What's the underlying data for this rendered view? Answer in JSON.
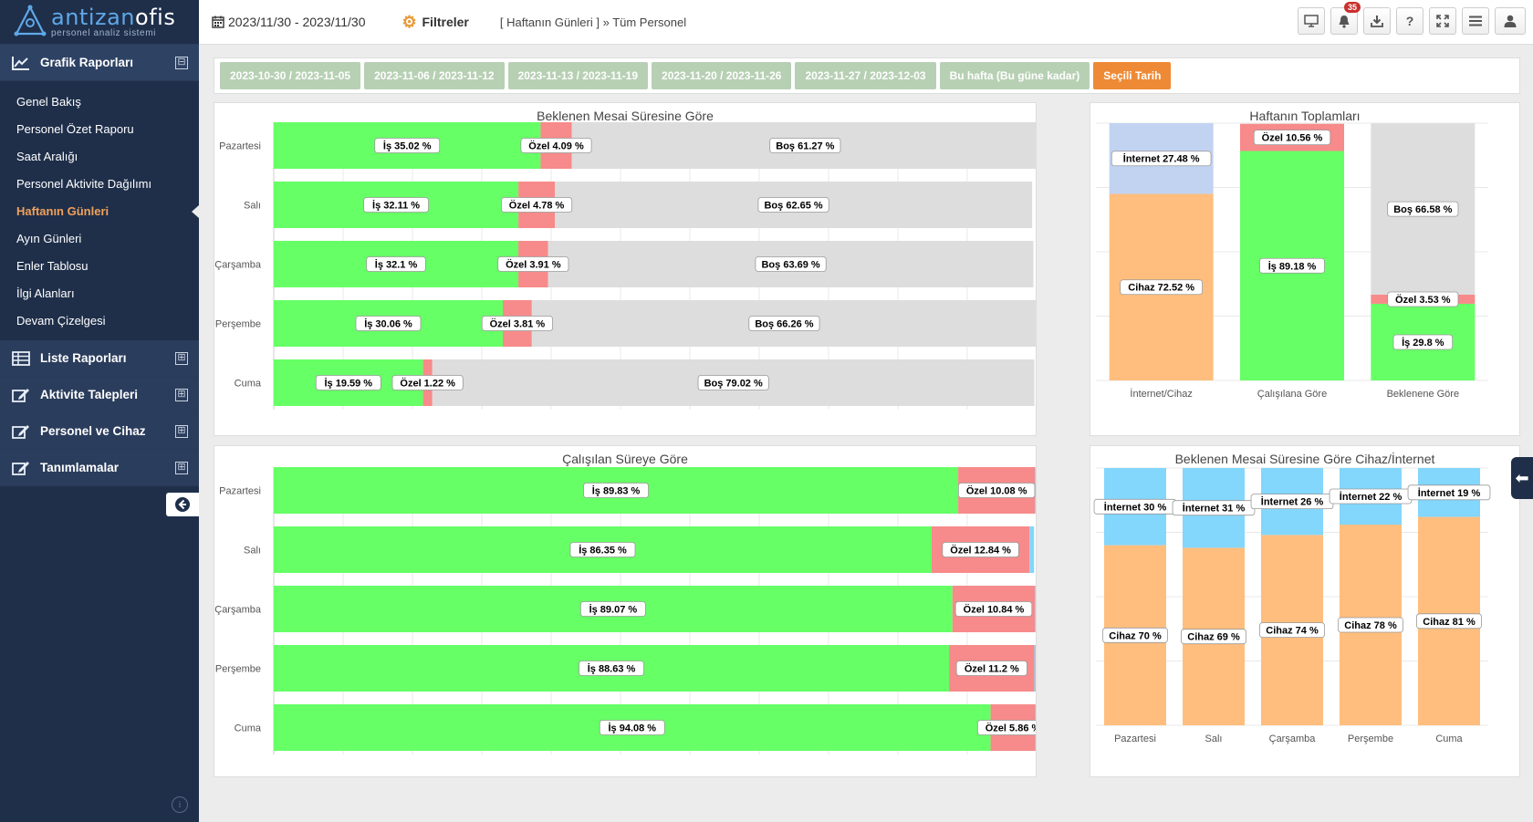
{
  "app": {
    "logo_main_a": "antizan",
    "logo_main_b": "ofis",
    "logo_sub": "personel analiz sistemi"
  },
  "sidebar": {
    "sections": [
      {
        "label": "Grafik Raporları",
        "toggle": "⊟",
        "icon": "chart-icon"
      },
      {
        "label": "Liste Raporları",
        "toggle": "⊞",
        "icon": "table-icon"
      },
      {
        "label": "Aktivite Talepleri",
        "toggle": "⊞",
        "icon": "edit-icon"
      },
      {
        "label": "Personel ve Cihaz",
        "toggle": "⊞",
        "icon": "edit-icon"
      },
      {
        "label": "Tanımlamalar",
        "toggle": "⊞",
        "icon": "edit-icon"
      }
    ],
    "items": [
      {
        "label": "Genel Bakış"
      },
      {
        "label": "Personel Özet Raporu"
      },
      {
        "label": "Saat Aralığı"
      },
      {
        "label": "Personel Aktivite Dağılımı"
      },
      {
        "label": "Haftanın Günleri",
        "active": true
      },
      {
        "label": "Ayın Günleri"
      },
      {
        "label": "Enler Tablosu"
      },
      {
        "label": "İlgi Alanları"
      },
      {
        "label": "Devam Çizelgesi"
      }
    ]
  },
  "topbar": {
    "date_range": "2023/11/30 - 2023/11/30",
    "filters_label": "Filtreler",
    "breadcrumb": "[ Haftanın Günleri ] » Tüm Personel",
    "notification_count": "35",
    "icons": [
      "monitor-icon",
      "bell-icon",
      "download-icon",
      "help-icon",
      "fullscreen-icon",
      "menu-icon",
      "user-icon"
    ]
  },
  "weeks": [
    {
      "label": "2023-10-30 / 2023-11-05"
    },
    {
      "label": "2023-11-06 / 2023-11-12"
    },
    {
      "label": "2023-11-13 / 2023-11-19"
    },
    {
      "label": "2023-11-20 / 2023-11-26"
    },
    {
      "label": "2023-11-27 / 2023-12-03"
    },
    {
      "label": "Bu hafta (Bu güne kadar)"
    },
    {
      "label": "Seçili Tarih",
      "selected": true
    }
  ],
  "colors": {
    "is": "#66ff66",
    "ozel": "#f78a8a",
    "bos": "#dddddd",
    "internet_blue": "#c2d3f2",
    "cihaz": "#ffbe7e",
    "internet_cyan": "#83d6fc",
    "selected_week": "#ee8a35",
    "week": "#b7d0b4",
    "active_menu": "#f0a05a"
  },
  "chart_data": [
    {
      "id": "expected",
      "type": "bar",
      "orientation": "horizontal-stacked",
      "title": "Beklenen Mesai Süresine Göre",
      "categories": [
        "Pazartesi",
        "Salı",
        "Çarşamba",
        "Perşembe",
        "Cuma"
      ],
      "series": [
        {
          "name": "İş",
          "color": "#66ff66",
          "values": [
            35.02,
            32.11,
            32.1,
            30.06,
            19.59
          ]
        },
        {
          "name": "Özel",
          "color": "#f78a8a",
          "values": [
            4.09,
            4.78,
            3.91,
            3.81,
            1.22
          ]
        },
        {
          "name": "Boş",
          "color": "#dddddd",
          "values": [
            61.27,
            62.65,
            63.69,
            66.26,
            79.02
          ]
        }
      ]
    },
    {
      "id": "weekly_totals",
      "type": "bar",
      "orientation": "vertical-stacked",
      "title": "Haftanın Toplamları",
      "categories": [
        "İnternet/Cihaz",
        "Çalışılana Göre",
        "Beklenene Göre"
      ],
      "stacks": [
        [
          {
            "name": "Cihaz",
            "value": 72.52,
            "color": "#ffbe7e"
          },
          {
            "name": "İnternet",
            "value": 27.48,
            "color": "#c2d3f2"
          }
        ],
        [
          {
            "name": "İş",
            "value": 89.18,
            "color": "#66ff66"
          },
          {
            "name": "Özel",
            "value": 10.56,
            "color": "#f78a8a"
          }
        ],
        [
          {
            "name": "İş",
            "value": 29.8,
            "color": "#66ff66"
          },
          {
            "name": "Özel",
            "value": 3.53,
            "color": "#f78a8a"
          },
          {
            "name": "Boş",
            "value": 66.58,
            "color": "#dddddd"
          }
        ]
      ]
    },
    {
      "id": "worked",
      "type": "bar",
      "orientation": "horizontal-stacked",
      "title": "Çalışılan Süreye Göre",
      "categories": [
        "Pazartesi",
        "Salı",
        "Çarşamba",
        "Perşembe",
        "Cuma"
      ],
      "series": [
        {
          "name": "İş",
          "color": "#66ff66",
          "values": [
            89.83,
            86.35,
            89.07,
            88.63,
            94.08
          ]
        },
        {
          "name": "Özel",
          "color": "#f78a8a",
          "values": [
            10.08,
            12.84,
            10.84,
            11.2,
            5.86
          ]
        }
      ]
    },
    {
      "id": "device_internet",
      "type": "bar",
      "orientation": "vertical-stacked",
      "title": "Beklenen Mesai Süresine Göre Cihaz/İnternet",
      "categories": [
        "Pazartesi",
        "Salı",
        "Çarşamba",
        "Perşembe",
        "Cuma"
      ],
      "series": [
        {
          "name": "Cihaz",
          "color": "#ffbe7e",
          "values": [
            70,
            69,
            74,
            78,
            81
          ]
        },
        {
          "name": "İnternet",
          "color": "#83d6fc",
          "values": [
            30,
            31,
            26,
            22,
            19
          ]
        }
      ]
    }
  ]
}
